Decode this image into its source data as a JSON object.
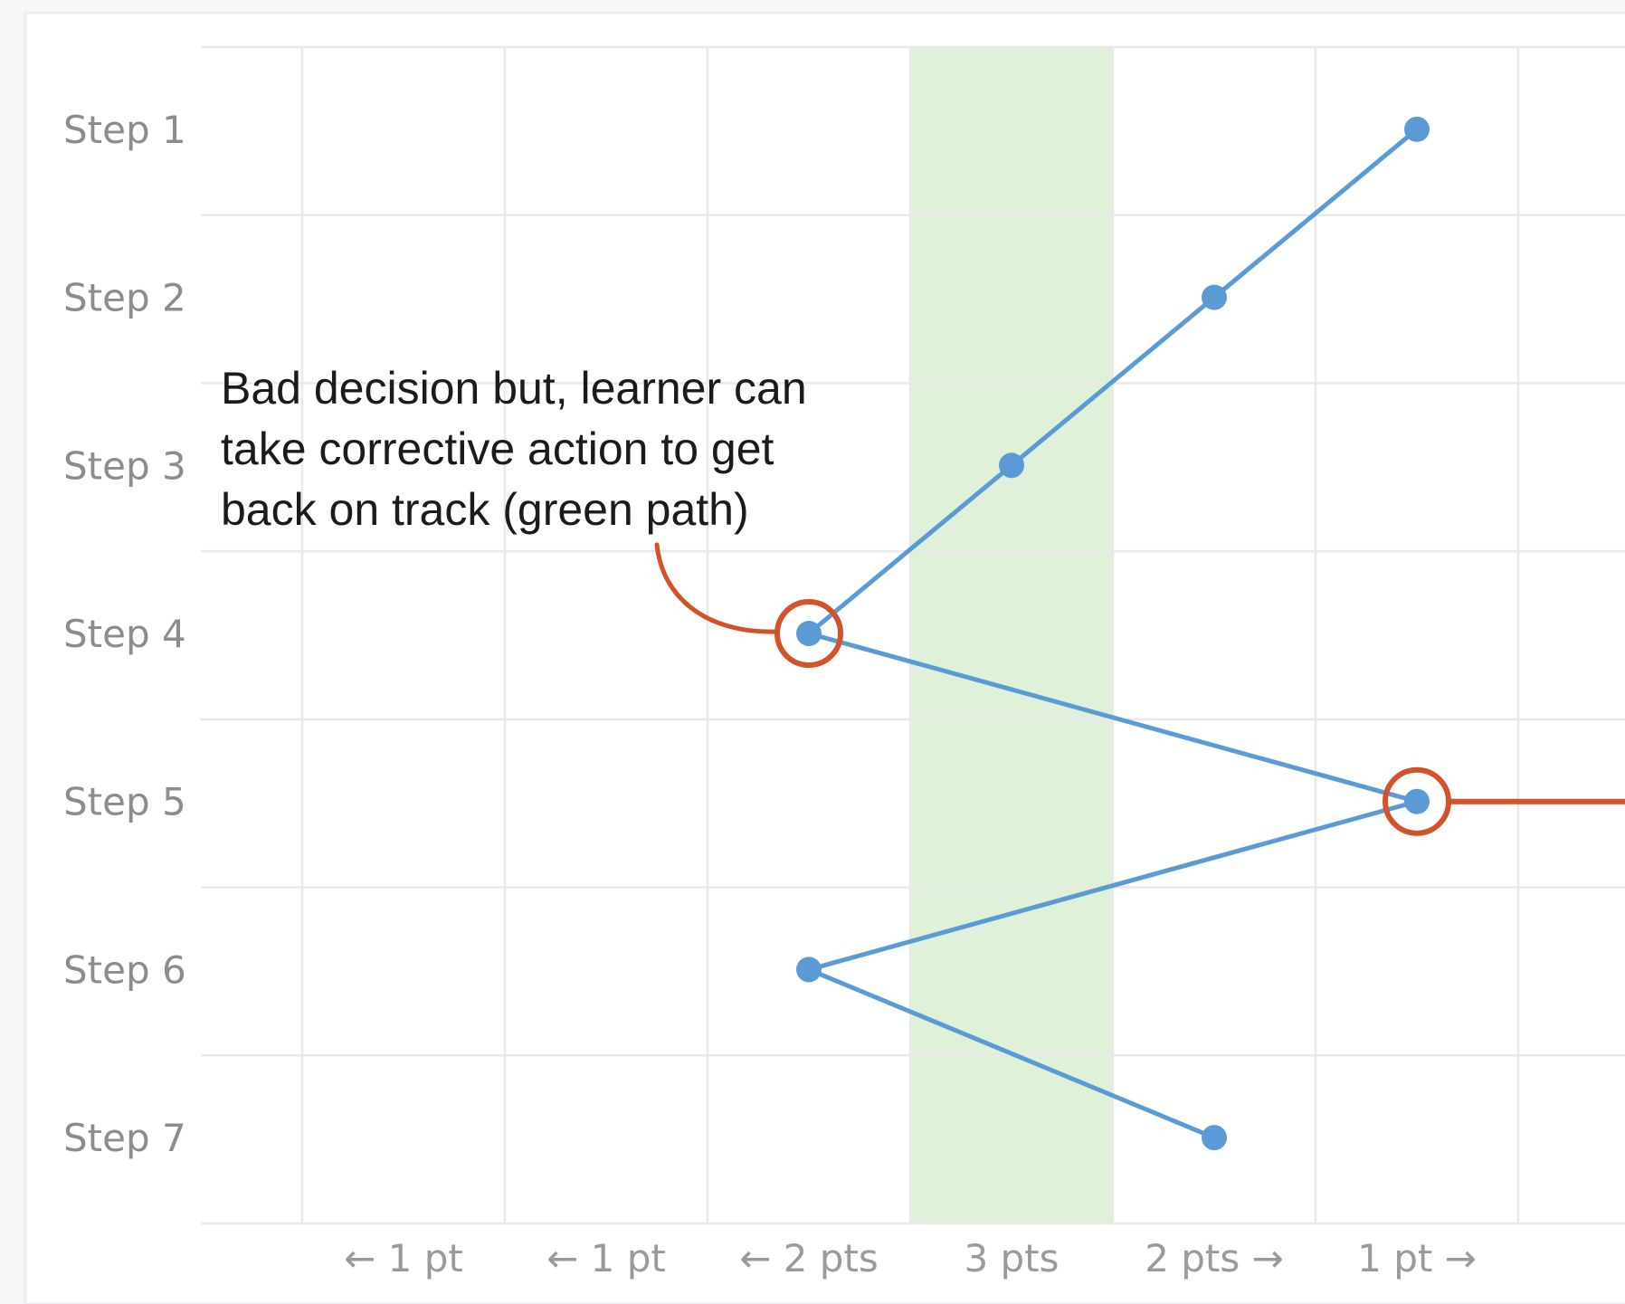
{
  "chart_data": {
    "type": "line",
    "title": "",
    "xlabel": "",
    "ylabel": "",
    "x_categories": [
      "← 1 pt",
      "← 1 pt",
      "← 2 pts",
      "3 pts",
      "2 pts →",
      "1 pt →"
    ],
    "y_categories": [
      "Step 1",
      "Step 2",
      "Step 3",
      "Step 4",
      "Step 5",
      "Step 6",
      "Step 7"
    ],
    "highlight_column": "3 pts",
    "grid": true,
    "series": [
      {
        "points": [
          {
            "x": "1 pt →",
            "y": "Step 1"
          },
          {
            "x": "2 pts →",
            "y": "Step 2"
          },
          {
            "x": "3 pts",
            "y": "Step 3"
          },
          {
            "x": "← 2 pts",
            "y": "Step 4"
          },
          {
            "x": "1 pt →",
            "y": "Step 5"
          },
          {
            "x": "← 2 pts",
            "y": "Step 6"
          },
          {
            "x": "2 pts →",
            "y": "Step 7"
          }
        ]
      }
    ],
    "circled_points": [
      {
        "x": "← 2 pts",
        "y": "Step 4"
      },
      {
        "x": "1 pt →",
        "y": "Step 5"
      }
    ],
    "annotation": {
      "lines": [
        "Bad decision but, learner can",
        "take corrective action to get",
        "back on track (green path)"
      ],
      "points_to": {
        "x": "← 2 pts",
        "y": "Step 4"
      }
    },
    "colors": {
      "line": "#5b9bd5",
      "point": "#5b9bd5",
      "highlight": "#dff1d8",
      "circle": "#d2522a",
      "grid": "#e9e9e9"
    }
  }
}
